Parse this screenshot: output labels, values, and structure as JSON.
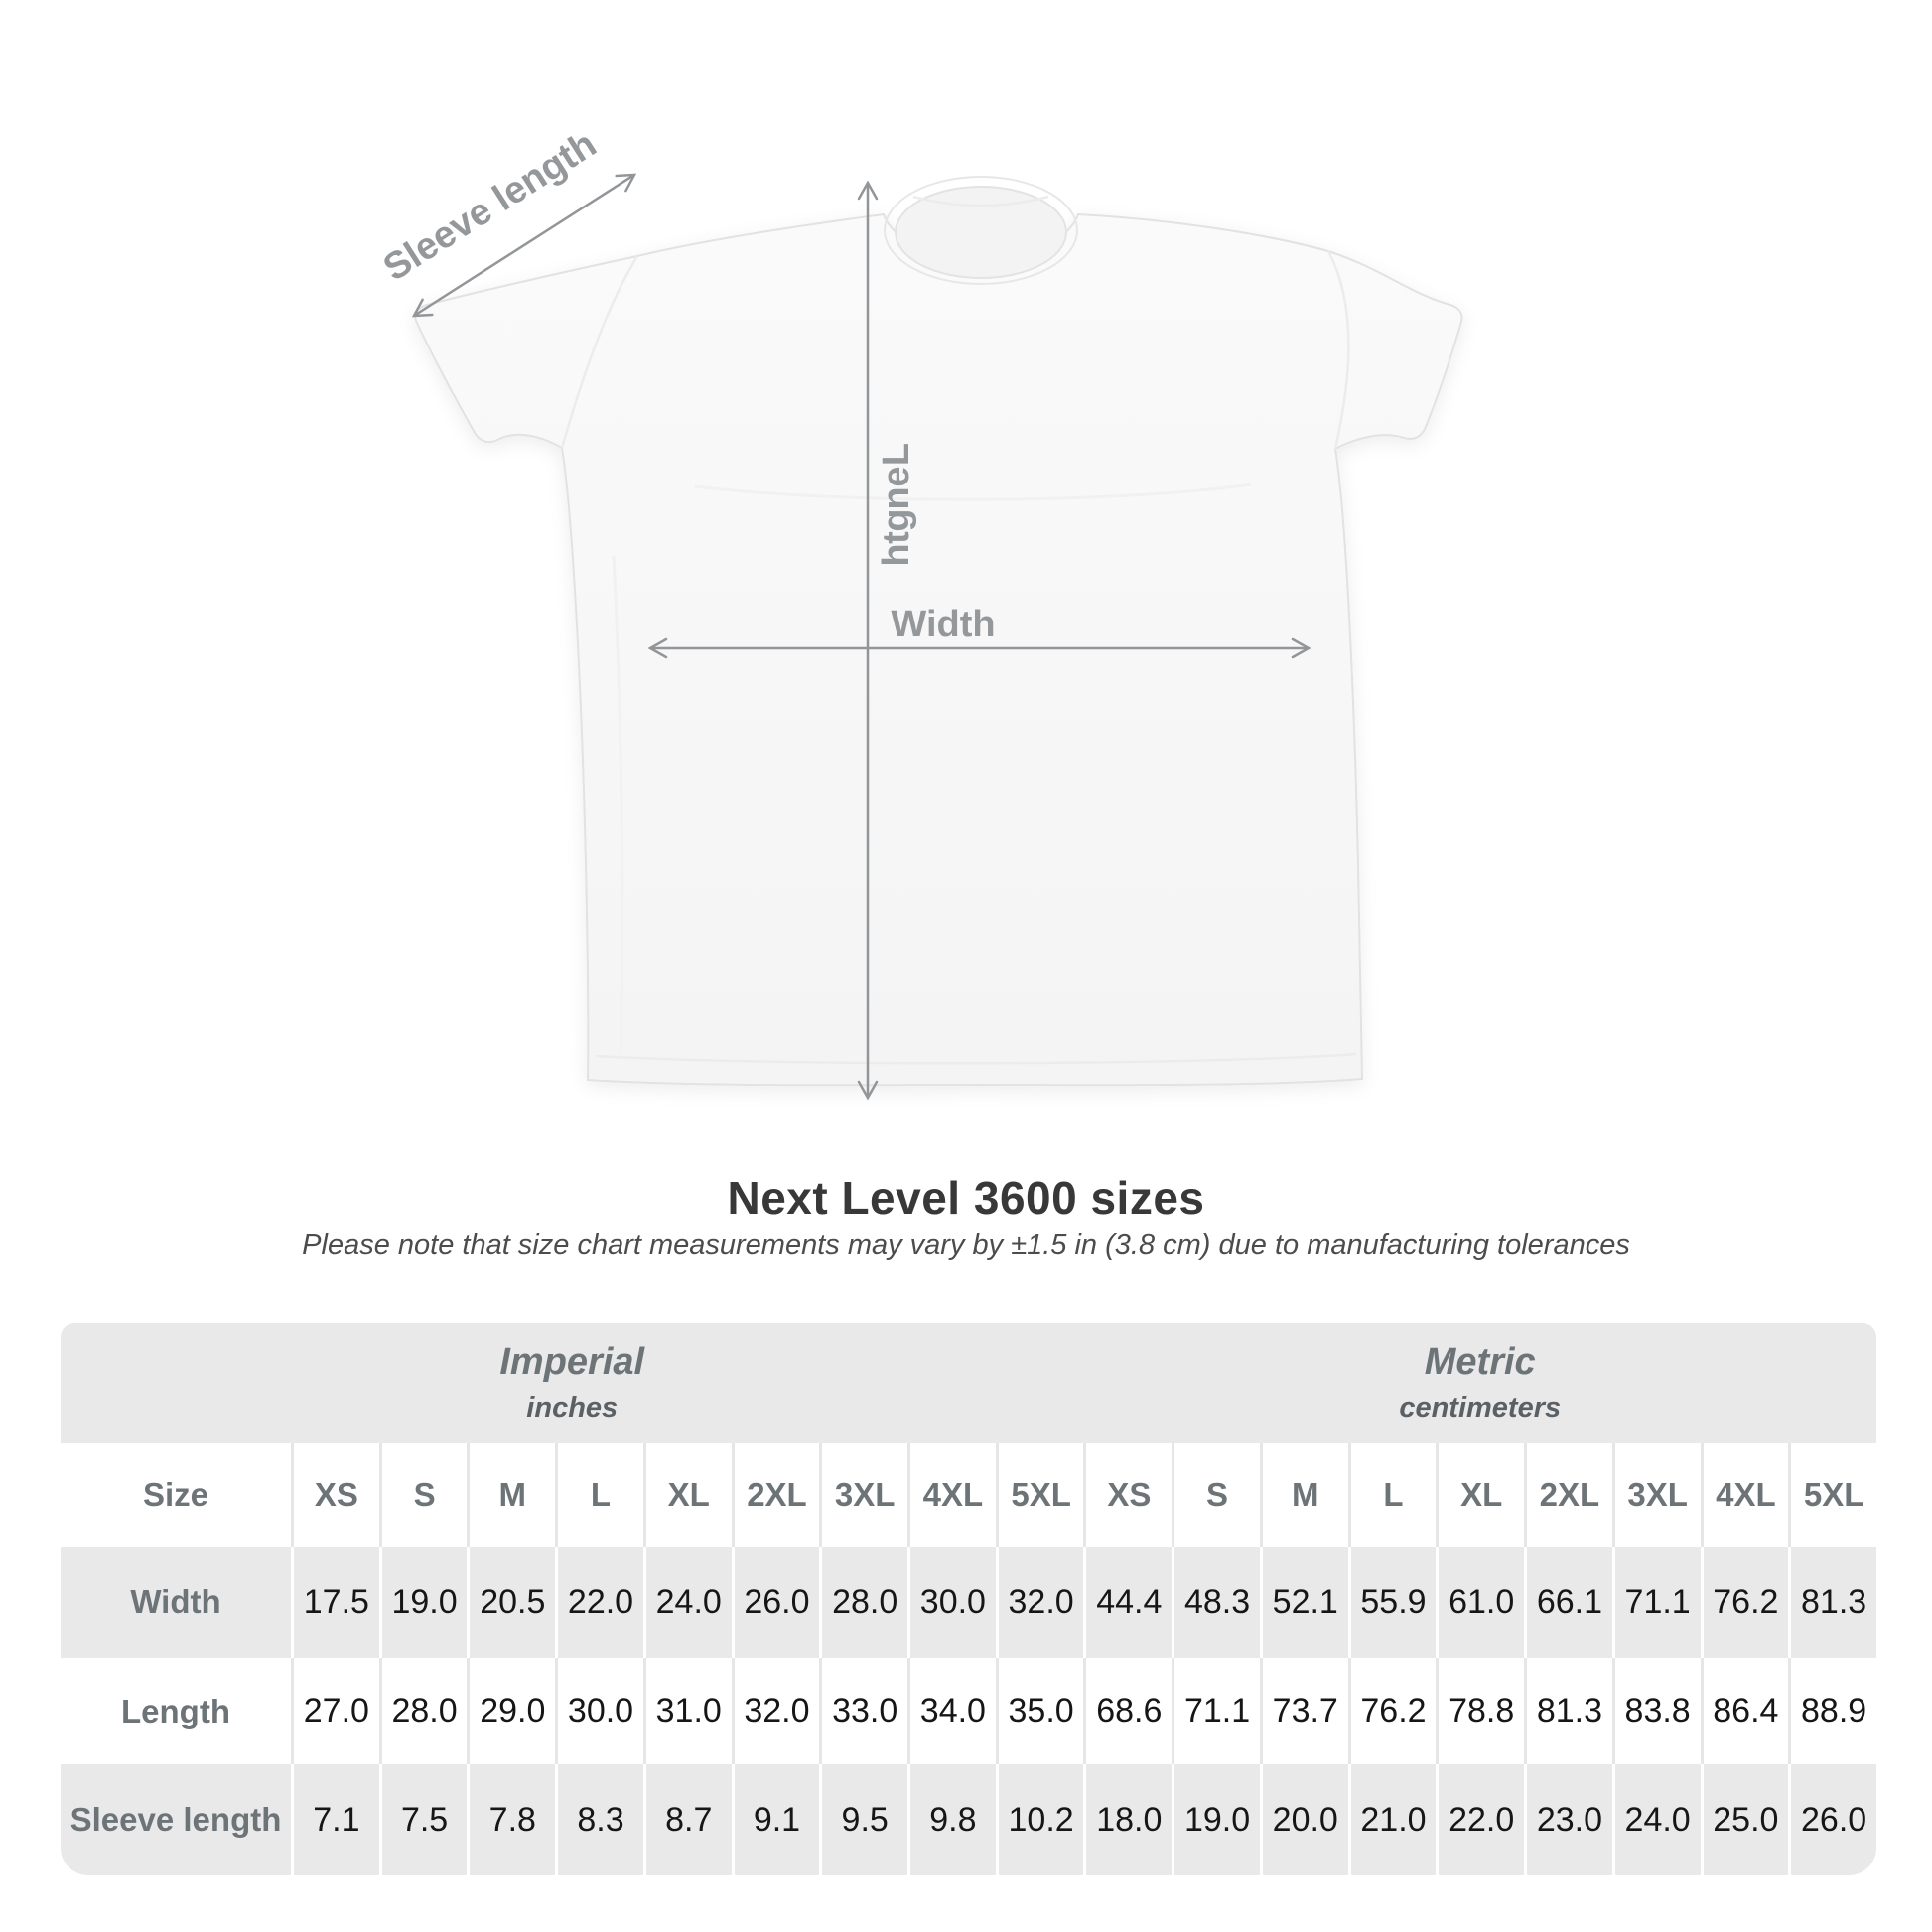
{
  "colors": {
    "background": "#ffffff",
    "table_band": "#e9e9e9",
    "arrow": "#939699",
    "diagram_label": "#95989b",
    "header_text": "#6d7478",
    "value_text": "#161616",
    "title_text": "#383838"
  },
  "diagram": {
    "sleeve_label": "Sleeve length",
    "length_label": "Length",
    "width_label": "Width"
  },
  "heading": {
    "title": "Next Level 3600 sizes",
    "subtitle": "Please note that size chart measurements may vary by ±1.5 in (3.8 cm) due to manufacturing tolerances"
  },
  "table": {
    "unit_sections": [
      {
        "label": "Imperial",
        "sublabel": "inches"
      },
      {
        "label": "Metric",
        "sublabel": "centimeters"
      }
    ],
    "size_header": "Size",
    "sizes": [
      "XS",
      "S",
      "M",
      "L",
      "XL",
      "2XL",
      "3XL",
      "4XL",
      "5XL"
    ],
    "rows": [
      {
        "label": "Width",
        "imperial": [
          "17.5",
          "19.0",
          "20.5",
          "22.0",
          "24.0",
          "26.0",
          "28.0",
          "30.0",
          "32.0"
        ],
        "metric": [
          "44.4",
          "48.3",
          "52.1",
          "55.9",
          "61.0",
          "66.1",
          "71.1",
          "76.2",
          "81.3"
        ]
      },
      {
        "label": "Length",
        "imperial": [
          "27.0",
          "28.0",
          "29.0",
          "30.0",
          "31.0",
          "32.0",
          "33.0",
          "34.0",
          "35.0"
        ],
        "metric": [
          "68.6",
          "71.1",
          "73.7",
          "76.2",
          "78.8",
          "81.3",
          "83.8",
          "86.4",
          "88.9"
        ]
      },
      {
        "label": "Sleeve length",
        "imperial": [
          "7.1",
          "7.5",
          "7.8",
          "8.3",
          "8.7",
          "9.1",
          "9.5",
          "9.8",
          "10.2"
        ],
        "metric": [
          "18.0",
          "19.0",
          "20.0",
          "21.0",
          "22.0",
          "23.0",
          "24.0",
          "25.0",
          "26.0"
        ]
      }
    ]
  },
  "chart_data": {
    "type": "table",
    "title": "Next Level 3600 sizes",
    "note": "Measurements may vary by ±1.5 in (3.8 cm) due to manufacturing tolerances",
    "columns": [
      "XS",
      "S",
      "M",
      "L",
      "XL",
      "2XL",
      "3XL",
      "4XL",
      "5XL"
    ],
    "units": {
      "imperial": "inches",
      "metric": "centimeters"
    },
    "rows": [
      {
        "measurement": "Width",
        "imperial": [
          17.5,
          19.0,
          20.5,
          22.0,
          24.0,
          26.0,
          28.0,
          30.0,
          32.0
        ],
        "metric": [
          44.4,
          48.3,
          52.1,
          55.9,
          61.0,
          66.1,
          71.1,
          76.2,
          81.3
        ]
      },
      {
        "measurement": "Length",
        "imperial": [
          27.0,
          28.0,
          29.0,
          30.0,
          31.0,
          32.0,
          33.0,
          34.0,
          35.0
        ],
        "metric": [
          68.6,
          71.1,
          73.7,
          76.2,
          78.8,
          81.3,
          83.8,
          86.4,
          88.9
        ]
      },
      {
        "measurement": "Sleeve length",
        "imperial": [
          7.1,
          7.5,
          7.8,
          8.3,
          8.7,
          9.1,
          9.5,
          9.8,
          10.2
        ],
        "metric": [
          18.0,
          19.0,
          20.0,
          21.0,
          22.0,
          23.0,
          24.0,
          25.0,
          26.0
        ]
      }
    ]
  }
}
